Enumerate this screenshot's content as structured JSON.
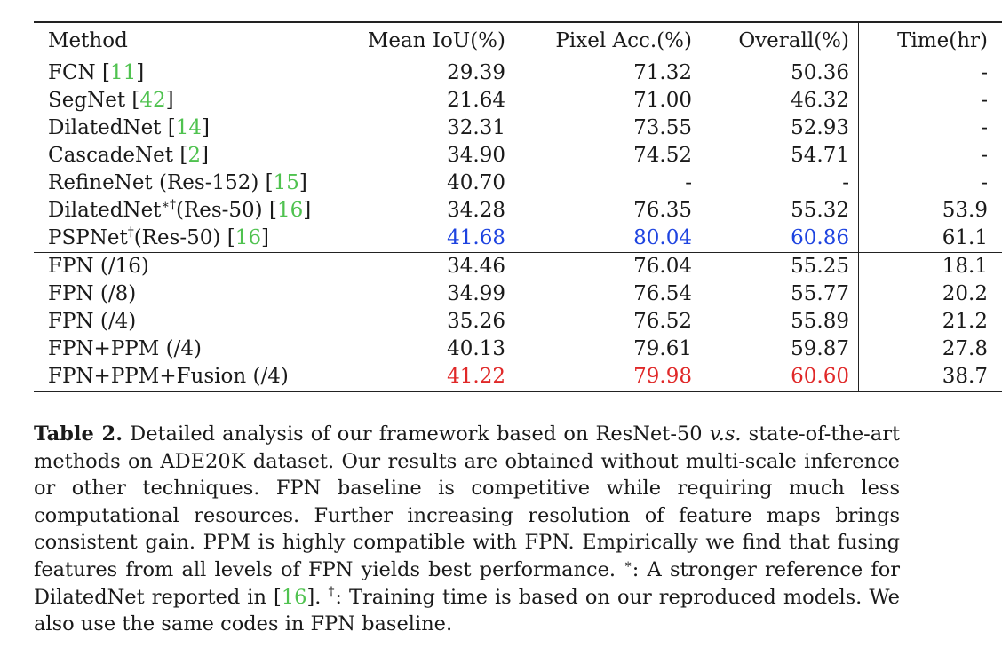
{
  "table": {
    "headers": {
      "method": "Method",
      "miou": "Mean IoU(%)",
      "pix": "Pixel Acc.(%)",
      "overall": "Overall(%)",
      "time": "Time(hr)"
    },
    "baselines": [
      {
        "name": "FCN ",
        "ref": "11",
        "suffix": "",
        "miou": "29.39",
        "pix": "71.32",
        "overall": "50.36",
        "time": "-"
      },
      {
        "name": "SegNet ",
        "ref": "42",
        "suffix": "",
        "miou": "21.64",
        "pix": "71.00",
        "overall": "46.32",
        "time": "-"
      },
      {
        "name": "DilatedNet ",
        "ref": "14",
        "suffix": "",
        "miou": "32.31",
        "pix": "73.55",
        "overall": "52.93",
        "time": "-"
      },
      {
        "name": "CascadeNet ",
        "ref": "2",
        "suffix": "",
        "miou": "34.90",
        "pix": "74.52",
        "overall": "54.71",
        "time": "-"
      },
      {
        "name": "RefineNet (Res-152) ",
        "ref": "15",
        "suffix": "",
        "miou": "40.70",
        "pix": "-",
        "overall": "-",
        "time": "-"
      },
      {
        "name": "DilatedNet",
        "sup": "∗†",
        "after": "(Res-50) ",
        "ref": "16",
        "miou": "34.28",
        "pix": "76.35",
        "overall": "55.32",
        "time": "53.9"
      },
      {
        "name": "PSPNet",
        "sup": "†",
        "after": "(Res-50) ",
        "ref": "16",
        "miou": "41.68",
        "pix": "80.04",
        "overall": "60.86",
        "time": "61.1"
      }
    ],
    "ours": [
      {
        "name": "FPN (/16)",
        "miou": "34.46",
        "pix": "76.04",
        "overall": "55.25",
        "time": "18.1"
      },
      {
        "name": "FPN (/8)",
        "miou": "34.99",
        "pix": "76.54",
        "overall": "55.77",
        "time": "20.2"
      },
      {
        "name": "FPN (/4)",
        "miou": "35.26",
        "pix": "76.52",
        "overall": "55.89",
        "time": "21.2"
      },
      {
        "name": "FPN+PPM (/4)",
        "miou": "40.13",
        "pix": "79.61",
        "overall": "59.87",
        "time": "27.8"
      },
      {
        "name": "FPN+PPM+Fusion (/4)",
        "miou": "41.22",
        "pix": "79.98",
        "overall": "60.60",
        "time": "38.7"
      }
    ]
  },
  "caption": {
    "label": "Table 2.",
    "text1": " Detailed analysis of our framework based on ResNet-50 ",
    "vs": "v.s.",
    "text2": " state-of-the-art methods on ADE20K dataset. Our results are obtained without multi-scale inference or other techniques. FPN baseline is competitive while requiring much less computational resources. Further increasing resolution of feature maps brings consistent gain. PPM is highly compatible with FPN. Empirically we find that fusing features from all levels of FPN yields best performance. ",
    "star": "∗",
    "text3": ": A stronger reference for DilatedNet reported in ",
    "ref": "16",
    "text4": ". ",
    "dagger": "†",
    "text5": ": Training time is based on our reproduced models. We also use the same codes in FPN baseline."
  },
  "colors": {
    "ref": "#4fc24f",
    "best_blue": "#1d43e0",
    "best_red": "#e02828"
  }
}
